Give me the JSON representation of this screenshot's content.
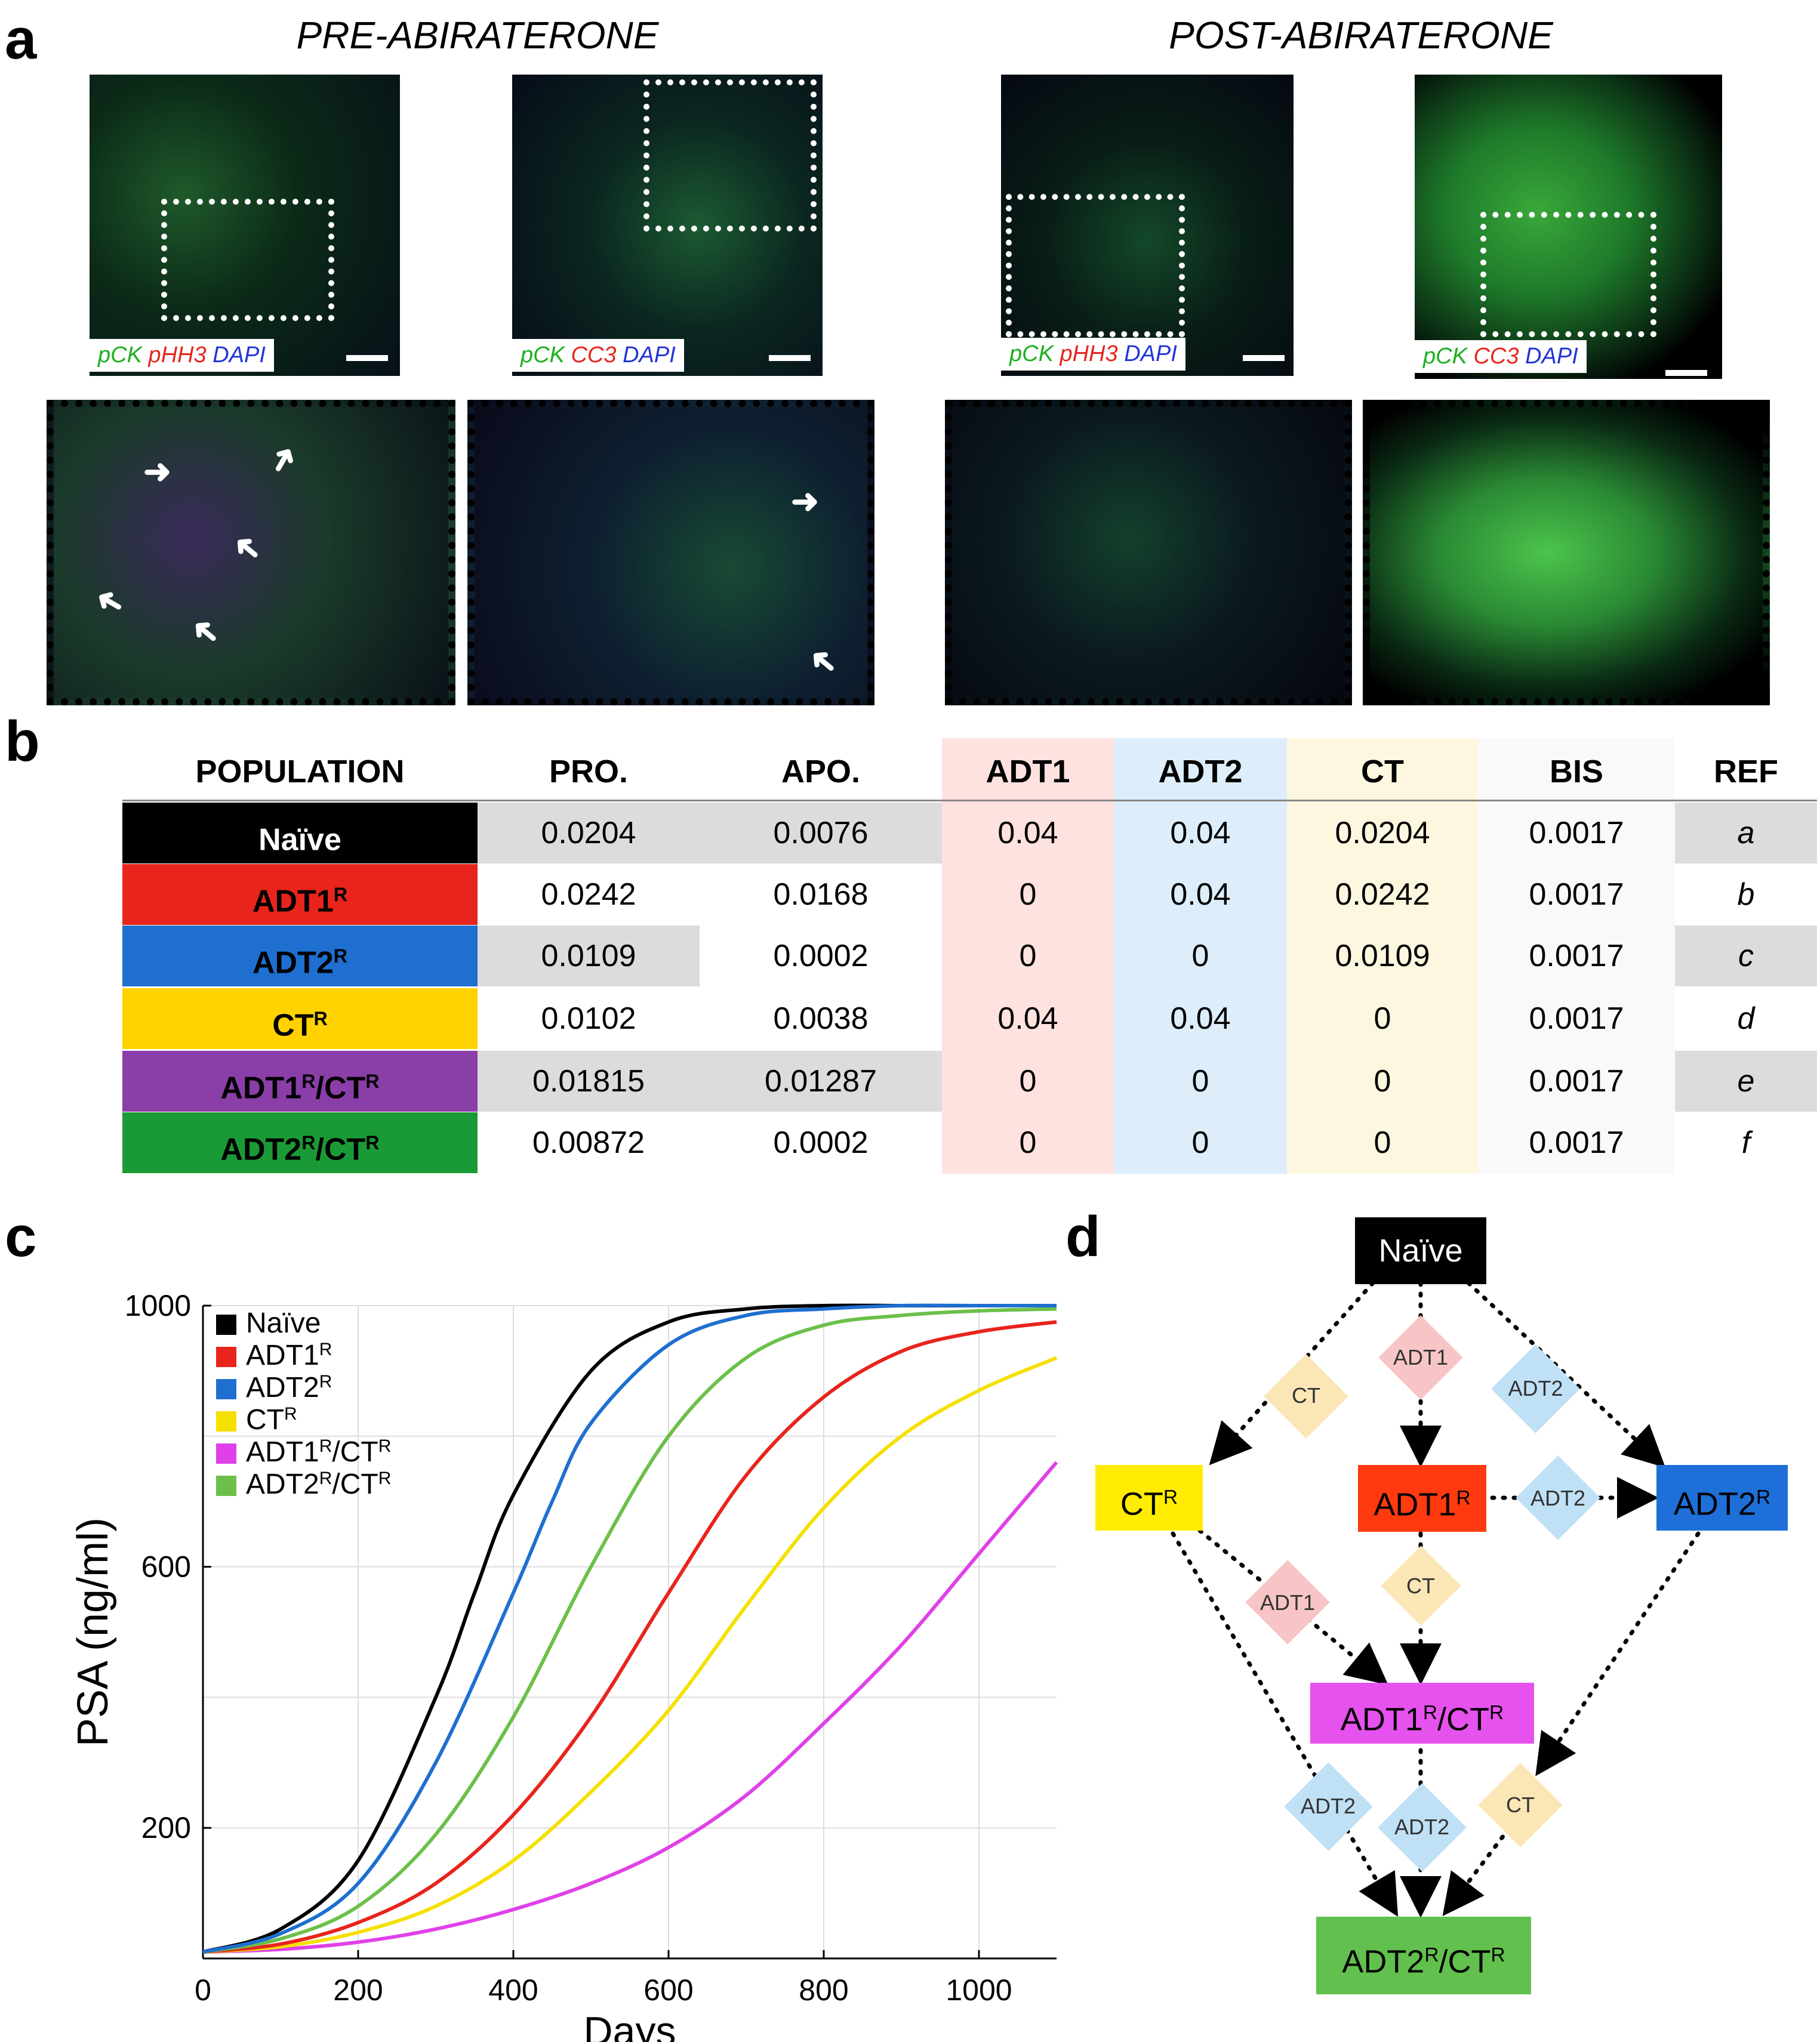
{
  "panels": {
    "a": "a",
    "b": "b",
    "c": "c",
    "d": "d"
  },
  "panel_a": {
    "pre_title": "PRE-ABIRATERONE",
    "post_title": "POST-ABIRATERONE",
    "labels": [
      {
        "p1": "pCK",
        "p2": "pHH3",
        "p3": "DAPI"
      },
      {
        "p1": "pCK",
        "p2": "CC3",
        "p3": "DAPI"
      },
      {
        "p1": "pCK",
        "p2": "pHH3",
        "p3": "DAPI"
      },
      {
        "p1": "pCK",
        "p2": "CC3",
        "p3": "DAPI"
      }
    ],
    "colors": {
      "green": "#1db01d",
      "red": "#e8241c",
      "blue": "#2233d8"
    }
  },
  "table": {
    "headers": [
      "POPULATION",
      "PRO.",
      "APO.",
      "ADT1",
      "ADT2",
      "CT",
      "BIS",
      "REF"
    ],
    "rows": [
      {
        "base": "Naïve",
        "sup": "",
        "sep": "",
        "base2": "",
        "sup2": "",
        "color": "#000000",
        "text_color": "#ffffff",
        "values": [
          "0.0204",
          "0.0076",
          "0.04",
          "0.04",
          "0.0204",
          "0.0017"
        ],
        "ref": "a"
      },
      {
        "base": "ADT1",
        "sup": "R",
        "sep": "",
        "base2": "",
        "sup2": "",
        "color": "#e8241c",
        "text_color": "#000000",
        "values": [
          "0.0242",
          "0.0168",
          "0",
          "0.04",
          "0.0242",
          "0.0017"
        ],
        "ref": "b"
      },
      {
        "base": "ADT2",
        "sup": "R",
        "sep": "",
        "base2": "",
        "sup2": "",
        "color": "#1e6fd0",
        "text_color": "#000000",
        "values": [
          "0.0109",
          "0.0002",
          "0",
          "0",
          "0.0109",
          "0.0017"
        ],
        "ref": "c"
      },
      {
        "base": "CT",
        "sup": "R",
        "sep": "",
        "base2": "",
        "sup2": "",
        "color": "#ffd200",
        "text_color": "#000000",
        "values": [
          "0.0102",
          "0.0038",
          "0.04",
          "0.04",
          "0",
          "0.0017"
        ],
        "ref": "d"
      },
      {
        "base": "ADT1",
        "sup": "R",
        "sep": "/",
        "base2": "CT",
        "sup2": "R",
        "color": "#8a3ea8",
        "text_color": "#000000",
        "values": [
          "0.01815",
          "0.01287",
          "0",
          "0",
          "0",
          "0.0017"
        ],
        "ref": "e"
      },
      {
        "base": "ADT2",
        "sup": "R",
        "sep": "/",
        "base2": "CT",
        "sup2": "R",
        "color": "#1a9a36",
        "text_color": "#000000",
        "values": [
          "0.00872",
          "0.0002",
          "0",
          "0",
          "0",
          "0.0017"
        ],
        "ref": "f"
      }
    ]
  },
  "chart_data": {
    "type": "line",
    "title": "",
    "xlabel": "Days",
    "ylabel": "PSA (ng/ml)",
    "xlim": [
      0,
      1100
    ],
    "ylim": [
      0,
      1000
    ],
    "xticks": [
      0,
      200,
      400,
      600,
      800,
      1000
    ],
    "yticks": [
      200,
      600,
      1000
    ],
    "legend_position": "top-left",
    "series": [
      {
        "name": "Naïve",
        "base": "Naïve",
        "sup": "",
        "sep": "",
        "base2": "",
        "sup2": "",
        "color": "#000000",
        "x": [
          0,
          100,
          200,
          300,
          350,
          400,
          500,
          600,
          700,
          800,
          900,
          1000,
          1100
        ],
        "y": [
          10,
          45,
          150,
          400,
          560,
          710,
          900,
          975,
          995,
          1000,
          1000,
          1000,
          1000
        ]
      },
      {
        "name": "ADT1R",
        "base": "ADT1",
        "sup": "R",
        "sep": "",
        "base2": "",
        "sup2": "",
        "color": "#e8241c",
        "x": [
          0,
          100,
          200,
          300,
          400,
          500,
          600,
          700,
          800,
          900,
          1000,
          1100
        ],
        "y": [
          10,
          22,
          55,
          115,
          220,
          370,
          560,
          740,
          860,
          930,
          960,
          975
        ]
      },
      {
        "name": "ADT2R",
        "base": "ADT2",
        "sup": "R",
        "sep": "",
        "base2": "",
        "sup2": "",
        "color": "#1e6fd0",
        "x": [
          0,
          100,
          200,
          300,
          400,
          450,
          500,
          600,
          700,
          800,
          900,
          1000,
          1100
        ],
        "y": [
          10,
          38,
          115,
          300,
          560,
          700,
          820,
          940,
          985,
          995,
          1000,
          1000,
          1000
        ]
      },
      {
        "name": "CTR",
        "base": "CT",
        "sup": "R",
        "sep": "",
        "base2": "",
        "sup2": "",
        "color": "#f5e000",
        "x": [
          0,
          100,
          200,
          300,
          400,
          500,
          600,
          700,
          800,
          900,
          1000,
          1100
        ],
        "y": [
          10,
          18,
          40,
          80,
          150,
          255,
          380,
          540,
          690,
          800,
          870,
          920
        ]
      },
      {
        "name": "ADT1R/CTR",
        "base": "ADT1",
        "sup": "R",
        "sep": "/",
        "base2": "CT",
        "sup2": "R",
        "color": "#e040e8",
        "x": [
          0,
          100,
          200,
          300,
          400,
          500,
          600,
          700,
          800,
          900,
          1000,
          1100
        ],
        "y": [
          10,
          14,
          25,
          45,
          75,
          115,
          170,
          250,
          360,
          480,
          620,
          760
        ]
      },
      {
        "name": "ADT2R/CTR",
        "base": "ADT2",
        "sup": "R",
        "sep": "/",
        "base2": "CT",
        "sup2": "R",
        "color": "#6cc04a",
        "x": [
          0,
          100,
          200,
          300,
          400,
          500,
          600,
          700,
          800,
          900,
          1000,
          1100
        ],
        "y": [
          10,
          30,
          80,
          190,
          370,
          600,
          800,
          920,
          970,
          985,
          992,
          995
        ]
      }
    ]
  },
  "diagram": {
    "nodes": {
      "naive": {
        "base": "Naïve",
        "sup": "",
        "sep": "",
        "base2": "",
        "sup2": ""
      },
      "ct": {
        "base": "CT",
        "sup": "R",
        "sep": "",
        "base2": "",
        "sup2": ""
      },
      "adt1": {
        "base": "ADT1",
        "sup": "R",
        "sep": "",
        "base2": "",
        "sup2": ""
      },
      "adt2": {
        "base": "ADT2",
        "sup": "R",
        "sep": "",
        "base2": "",
        "sup2": ""
      },
      "adt1ct": {
        "base": "ADT1",
        "sup": "R",
        "sep": "/",
        "base2": "CT",
        "sup2": "R"
      },
      "adt2ct": {
        "base": "ADT2",
        "sup": "R",
        "sep": "/",
        "base2": "CT",
        "sup2": "R"
      }
    },
    "edge_labels": [
      "CT",
      "ADT1",
      "ADT2",
      "ADT2",
      "ADT1",
      "CT",
      "ADT2",
      "ADT2",
      "CT"
    ],
    "colors": {
      "ADT1": "#f7c5c5",
      "ADT2": "#bfe0f5",
      "CT": "#fbe6b5"
    }
  }
}
